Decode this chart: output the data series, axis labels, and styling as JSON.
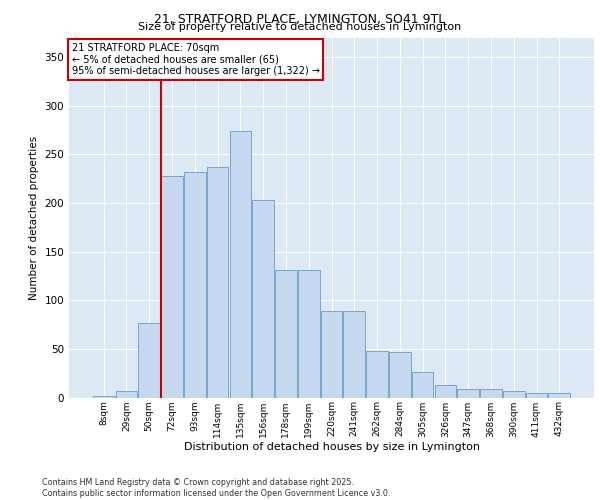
{
  "title1": "21, STRATFORD PLACE, LYMINGTON, SO41 9TL",
  "title2": "Size of property relative to detached houses in Lymington",
  "xlabel": "Distribution of detached houses by size in Lymington",
  "ylabel": "Number of detached properties",
  "categories": [
    "8sqm",
    "29sqm",
    "50sqm",
    "72sqm",
    "93sqm",
    "114sqm",
    "135sqm",
    "156sqm",
    "178sqm",
    "199sqm",
    "220sqm",
    "241sqm",
    "262sqm",
    "284sqm",
    "305sqm",
    "326sqm",
    "347sqm",
    "368sqm",
    "390sqm",
    "411sqm",
    "432sqm"
  ],
  "values": [
    2,
    7,
    77,
    228,
    232,
    237,
    274,
    203,
    131,
    131,
    89,
    89,
    48,
    47,
    26,
    13,
    9,
    9,
    7,
    5,
    5
  ],
  "bar_color": "#c6d9f0",
  "bar_edge_color": "#7aa6cc",
  "vline_color": "#cc0000",
  "annotation_text": "21 STRATFORD PLACE: 70sqm\n← 5% of detached houses are smaller (65)\n95% of semi-detached houses are larger (1,322) →",
  "annotation_box_color": "#cc0000",
  "bg_color": "#dce9f5",
  "footer": "Contains HM Land Registry data © Crown copyright and database right 2025.\nContains public sector information licensed under the Open Government Licence v3.0.",
  "ylim": [
    0,
    370
  ],
  "yticks": [
    0,
    50,
    100,
    150,
    200,
    250,
    300,
    350
  ]
}
